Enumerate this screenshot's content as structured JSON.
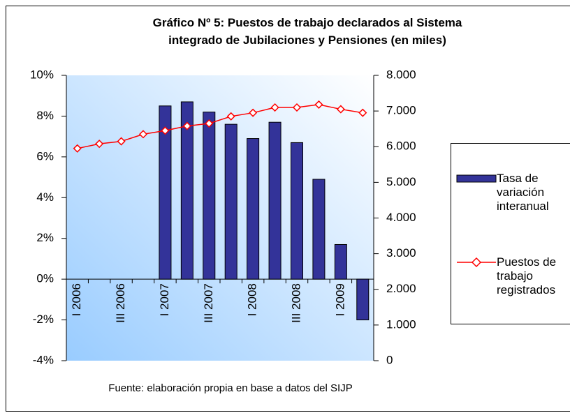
{
  "chart_data": {
    "type": "bar+line",
    "title": "Gráfico Nº 5: Puestos de trabajo declarados al Sistema integrado de Jubilaciones y Pensiones (en miles)",
    "source": "Fuente: elaboración propia en base a datos del SIJP",
    "categories": [
      "I 2006",
      null,
      "III 2006",
      null,
      "I 2007",
      null,
      "III 2007",
      null,
      "I 2008",
      null,
      "III 2008",
      null,
      "I 2009",
      null
    ],
    "series": [
      {
        "name": "Tasa de variación interanual",
        "type": "bar",
        "color": "#333399",
        "values": [
          null,
          null,
          null,
          null,
          8.5,
          8.7,
          8.2,
          7.6,
          6.9,
          7.7,
          6.7,
          4.9,
          1.7,
          -2.0
        ]
      },
      {
        "name": "Puestos de trabajo registrados",
        "type": "line",
        "color": "#ff0000",
        "axis": "y2",
        "values": [
          5950,
          6080,
          6150,
          6350,
          6450,
          6580,
          6650,
          6850,
          6950,
          7100,
          7100,
          7180,
          7050,
          6950
        ]
      }
    ],
    "ylim": [
      -4,
      10
    ],
    "yticks": [
      {
        "value": -4,
        "label": "-4%"
      },
      {
        "value": -2,
        "label": "-2%"
      },
      {
        "value": 0,
        "label": "0%"
      },
      {
        "value": 2,
        "label": "2%"
      },
      {
        "value": 4,
        "label": "4%"
      },
      {
        "value": 6,
        "label": "6%"
      },
      {
        "value": 8,
        "label": "8%"
      },
      {
        "value": 10,
        "label": "10%"
      }
    ],
    "y2lim": [
      0,
      8000
    ],
    "y2ticks": [
      0,
      {
        "value": 1000,
        "label": "1.000"
      },
      {
        "value": 2000,
        "label": "2.000"
      },
      {
        "value": 3000,
        "label": "3.000"
      },
      {
        "value": 4000,
        "label": "4.000"
      },
      {
        "value": 5000,
        "label": "5.000"
      },
      {
        "value": 6000,
        "label": "6.000"
      },
      {
        "value": 7000,
        "label": "7.000"
      },
      {
        "value": 8000,
        "label": "8.000"
      }
    ],
    "legend": "right"
  }
}
